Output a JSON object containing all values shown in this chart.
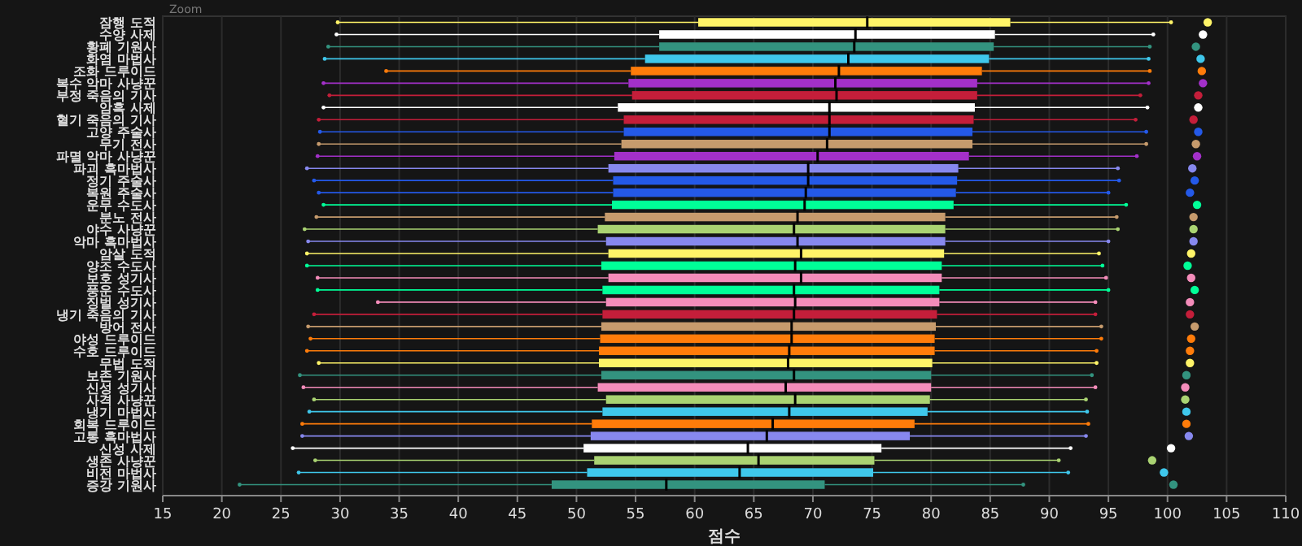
{
  "chart_data": {
    "type": "box",
    "orientation": "horizontal",
    "xlabel": "점수",
    "annotations": [
      "Zoom"
    ],
    "grid": "x",
    "xlim": [
      15,
      110
    ],
    "xticks": [
      15,
      20,
      25,
      30,
      35,
      40,
      45,
      50,
      55,
      60,
      65,
      70,
      75,
      80,
      85,
      90,
      95,
      100,
      105,
      110
    ],
    "categories": [
      "잠행 도적",
      "수양 사제",
      "황폐 기원사",
      "화염 마법사",
      "조화 드루이드",
      "복수 악마 사냥꾼",
      "부정 죽음의 기사",
      "암흑 사제",
      "혈기 죽음의 기사",
      "고양 주술사",
      "무기 전사",
      "파멸 악마 사냥꾼",
      "파괴 흑마법사",
      "정기 주술사",
      "복원 주술사",
      "운무 수도사",
      "분노 전사",
      "야수 사냥꾼",
      "악마 흑마법사",
      "암살 도적",
      "양조 수도사",
      "보호 성기사",
      "풍운 수도사",
      "징벌 성기사",
      "냉기 죽음의 기사",
      "방어 전사",
      "야성 드루이드",
      "수호 드루이드",
      "무법 도적",
      "보존 기원사",
      "신성 성기사",
      "사격 사냥꾼",
      "냉기 마법사",
      "회복 드루이드",
      "고통 흑마법사",
      "신성 사제",
      "생존 사냥꾼",
      "비전 마법사",
      "증강 기원사"
    ],
    "colors": [
      "#fff468",
      "#ffffff",
      "#33937f",
      "#3fc7eb",
      "#ff7c0a",
      "#a330c9",
      "#c41e3a",
      "#ffffff",
      "#c41e3a",
      "#2459e8",
      "#c69b6d",
      "#a330c9",
      "#8788ee",
      "#2459e8",
      "#2459e8",
      "#00ff98",
      "#c69b6d",
      "#aad372",
      "#8788ee",
      "#fff468",
      "#00ff98",
      "#f48cba",
      "#00ff98",
      "#f48cba",
      "#c41e3a",
      "#c69b6d",
      "#ff7c0a",
      "#ff7c0a",
      "#fff468",
      "#33937f",
      "#f48cba",
      "#aad372",
      "#3fc7eb",
      "#ff7c0a",
      "#8788ee",
      "#ffffff",
      "#aad372",
      "#3fc7eb",
      "#33937f"
    ],
    "boxes": [
      {
        "low": 29.8,
        "q1": 60.3,
        "median": 74.6,
        "q3": 86.7,
        "high": 100.3,
        "outliers": [
          103.4
        ]
      },
      {
        "low": 29.7,
        "q1": 57.0,
        "median": 73.6,
        "q3": 85.4,
        "high": 98.8,
        "outliers": [
          103.0
        ]
      },
      {
        "low": 29.0,
        "q1": 57.0,
        "median": 73.5,
        "q3": 85.3,
        "high": 98.5,
        "outliers": [
          102.4
        ]
      },
      {
        "low": 28.7,
        "q1": 55.8,
        "median": 73.0,
        "q3": 84.9,
        "high": 98.4,
        "outliers": [
          102.8
        ]
      },
      {
        "low": 33.9,
        "q1": 54.6,
        "median": 72.2,
        "q3": 84.3,
        "high": 98.5,
        "outliers": [
          102.9
        ]
      },
      {
        "low": 28.6,
        "q1": 54.4,
        "median": 71.9,
        "q3": 83.9,
        "high": 98.4,
        "outliers": [
          103.0
        ]
      },
      {
        "low": 29.1,
        "q1": 54.7,
        "median": 72.0,
        "q3": 83.9,
        "high": 97.7,
        "outliers": [
          102.6
        ]
      },
      {
        "low": 28.6,
        "q1": 53.5,
        "median": 71.4,
        "q3": 83.7,
        "high": 98.3,
        "outliers": [
          102.6
        ]
      },
      {
        "low": 28.2,
        "q1": 54.0,
        "median": 71.4,
        "q3": 83.6,
        "high": 97.3,
        "outliers": [
          102.2
        ]
      },
      {
        "low": 28.3,
        "q1": 54.0,
        "median": 71.4,
        "q3": 83.5,
        "high": 98.2,
        "outliers": [
          102.6
        ]
      },
      {
        "low": 28.2,
        "q1": 53.8,
        "median": 71.2,
        "q3": 83.5,
        "high": 98.2,
        "outliers": [
          102.4
        ]
      },
      {
        "low": 28.1,
        "q1": 53.2,
        "median": 70.4,
        "q3": 83.2,
        "high": 97.4,
        "outliers": [
          102.5
        ]
      },
      {
        "low": 27.2,
        "q1": 52.7,
        "median": 69.6,
        "q3": 82.3,
        "high": 95.8,
        "outliers": [
          102.1
        ]
      },
      {
        "low": 27.8,
        "q1": 53.1,
        "median": 69.6,
        "q3": 82.2,
        "high": 95.9,
        "outliers": [
          102.3
        ]
      },
      {
        "low": 28.2,
        "q1": 53.1,
        "median": 69.4,
        "q3": 82.1,
        "high": 95.0,
        "outliers": [
          101.9
        ]
      },
      {
        "low": 28.6,
        "q1": 53.0,
        "median": 69.3,
        "q3": 81.9,
        "high": 96.5,
        "outliers": [
          102.5
        ]
      },
      {
        "low": 28.0,
        "q1": 52.4,
        "median": 68.7,
        "q3": 81.2,
        "high": 95.7,
        "outliers": [
          102.2
        ]
      },
      {
        "low": 27.0,
        "q1": 51.8,
        "median": 68.4,
        "q3": 81.2,
        "high": 95.8,
        "outliers": [
          102.2
        ]
      },
      {
        "low": 27.3,
        "q1": 52.5,
        "median": 68.7,
        "q3": 81.2,
        "high": 95.0,
        "outliers": [
          102.2
        ]
      },
      {
        "low": 27.2,
        "q1": 52.7,
        "median": 69.0,
        "q3": 81.1,
        "high": 94.2,
        "outliers": [
          102.0
        ]
      },
      {
        "low": 27.2,
        "q1": 52.1,
        "median": 68.5,
        "q3": 80.9,
        "high": 94.5,
        "outliers": [
          101.7
        ]
      },
      {
        "low": 28.1,
        "q1": 52.7,
        "median": 69.0,
        "q3": 80.9,
        "high": 94.8,
        "outliers": [
          102.0
        ]
      },
      {
        "low": 28.1,
        "q1": 52.2,
        "median": 68.4,
        "q3": 80.7,
        "high": 95.0,
        "outliers": [
          102.3
        ]
      },
      {
        "low": 33.2,
        "q1": 52.5,
        "median": 68.5,
        "q3": 80.7,
        "high": 93.9,
        "outliers": [
          101.9
        ]
      },
      {
        "low": 27.8,
        "q1": 52.2,
        "median": 68.4,
        "q3": 80.5,
        "high": 93.9,
        "outliers": [
          101.9
        ]
      },
      {
        "low": 27.3,
        "q1": 52.1,
        "median": 68.2,
        "q3": 80.4,
        "high": 94.4,
        "outliers": [
          102.3
        ]
      },
      {
        "low": 27.5,
        "q1": 52.0,
        "median": 68.2,
        "q3": 80.3,
        "high": 94.4,
        "outliers": [
          102.0
        ]
      },
      {
        "low": 27.2,
        "q1": 51.9,
        "median": 68.0,
        "q3": 80.3,
        "high": 94.0,
        "outliers": [
          101.9
        ]
      },
      {
        "low": 28.2,
        "q1": 51.9,
        "median": 67.9,
        "q3": 80.1,
        "high": 94.0,
        "outliers": [
          101.9
        ]
      },
      {
        "low": 26.6,
        "q1": 52.1,
        "median": 68.4,
        "q3": 80.0,
        "high": 93.6,
        "outliers": [
          101.6
        ]
      },
      {
        "low": 26.9,
        "q1": 51.8,
        "median": 67.7,
        "q3": 80.0,
        "high": 93.9,
        "outliers": [
          101.5
        ]
      },
      {
        "low": 27.8,
        "q1": 52.5,
        "median": 68.5,
        "q3": 79.9,
        "high": 93.1,
        "outliers": [
          101.5
        ]
      },
      {
        "low": 27.4,
        "q1": 52.2,
        "median": 68.0,
        "q3": 79.7,
        "high": 93.2,
        "outliers": [
          101.6
        ]
      },
      {
        "low": 26.8,
        "q1": 51.3,
        "median": 66.6,
        "q3": 78.6,
        "high": 93.3,
        "outliers": [
          101.6
        ]
      },
      {
        "low": 26.8,
        "q1": 51.2,
        "median": 66.1,
        "q3": 78.2,
        "high": 93.1,
        "outliers": [
          101.8
        ]
      },
      {
        "low": 26.0,
        "q1": 50.6,
        "median": 64.5,
        "q3": 75.8,
        "high": 91.8,
        "outliers": [
          100.3
        ]
      },
      {
        "low": 27.9,
        "q1": 51.5,
        "median": 65.4,
        "q3": 75.2,
        "high": 90.8,
        "outliers": [
          98.7
        ]
      },
      {
        "low": 26.5,
        "q1": 50.9,
        "median": 63.8,
        "q3": 75.1,
        "high": 91.6,
        "outliers": [
          99.7
        ]
      },
      {
        "low": 21.5,
        "q1": 47.9,
        "median": 57.6,
        "q3": 71.0,
        "high": 87.8,
        "outliers": [
          100.5
        ]
      }
    ]
  }
}
